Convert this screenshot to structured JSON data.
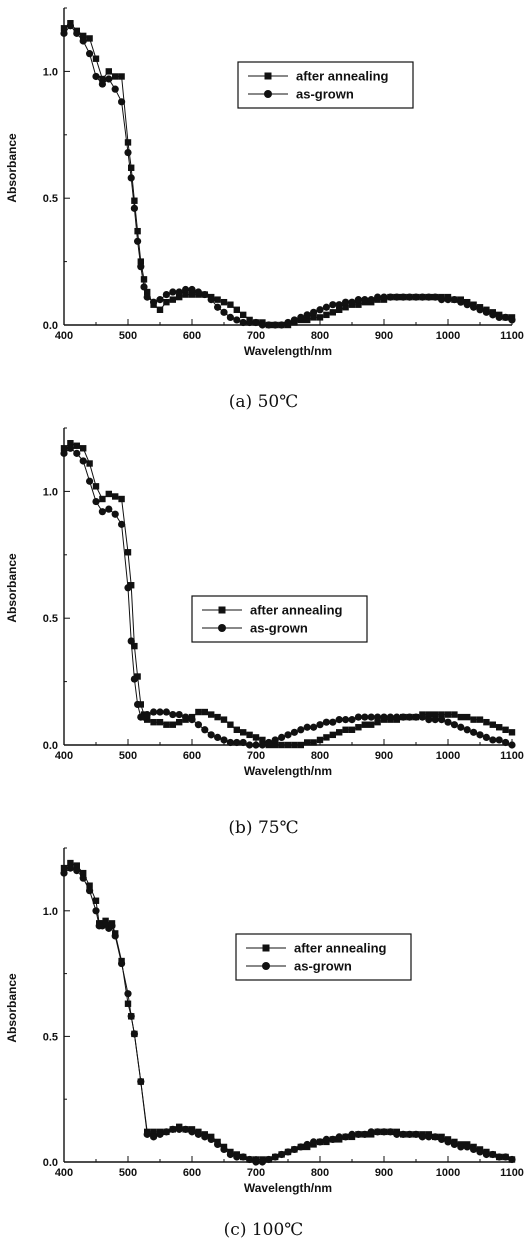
{
  "chart_data": [
    {
      "type": "line",
      "caption": "(a) 50℃",
      "xlabel": "Wavelength/nm",
      "ylabel": "Absorbance",
      "xlim": [
        400,
        1100
      ],
      "ylim": [
        0,
        1.25
      ],
      "xticks": [
        400,
        500,
        600,
        700,
        800,
        900,
        1000,
        1100
      ],
      "yticks": [
        0.0,
        0.5,
        1.0
      ],
      "ytick_labels": [
        "0.0",
        "0.5",
        "1.0"
      ],
      "legend": "upper-right",
      "series": [
        {
          "name": "after annealing",
          "marker": "square",
          "x": [
            400,
            410,
            420,
            430,
            440,
            450,
            460,
            470,
            480,
            490,
            500,
            505,
            510,
            515,
            520,
            525,
            530,
            540,
            550,
            560,
            570,
            580,
            590,
            600,
            610,
            620,
            630,
            640,
            650,
            660,
            670,
            680,
            690,
            700,
            710,
            720,
            730,
            740,
            750,
            760,
            770,
            780,
            790,
            800,
            810,
            820,
            830,
            840,
            850,
            860,
            870,
            880,
            890,
            900,
            910,
            920,
            930,
            940,
            950,
            960,
            970,
            980,
            990,
            1000,
            1010,
            1020,
            1030,
            1040,
            1050,
            1060,
            1070,
            1080,
            1090,
            1100
          ],
          "y": [
            1.17,
            1.19,
            1.16,
            1.14,
            1.13,
            1.05,
            0.97,
            1.0,
            0.98,
            0.98,
            0.72,
            0.62,
            0.49,
            0.37,
            0.25,
            0.18,
            0.13,
            0.08,
            0.06,
            0.09,
            0.1,
            0.11,
            0.12,
            0.12,
            0.12,
            0.12,
            0.11,
            0.1,
            0.09,
            0.08,
            0.06,
            0.04,
            0.02,
            0.01,
            0.01,
            0.0,
            0.0,
            0.0,
            0.0,
            0.01,
            0.02,
            0.02,
            0.03,
            0.03,
            0.04,
            0.05,
            0.06,
            0.07,
            0.08,
            0.08,
            0.09,
            0.09,
            0.1,
            0.1,
            0.11,
            0.11,
            0.11,
            0.11,
            0.11,
            0.11,
            0.11,
            0.11,
            0.11,
            0.11,
            0.1,
            0.1,
            0.09,
            0.08,
            0.07,
            0.06,
            0.05,
            0.04,
            0.03,
            0.03
          ]
        },
        {
          "name": "as-grown",
          "marker": "circle",
          "x": [
            400,
            410,
            420,
            430,
            440,
            450,
            460,
            470,
            480,
            490,
            500,
            505,
            510,
            515,
            520,
            525,
            530,
            540,
            550,
            560,
            570,
            580,
            590,
            600,
            610,
            620,
            630,
            640,
            650,
            660,
            670,
            680,
            690,
            700,
            710,
            720,
            730,
            740,
            750,
            760,
            770,
            780,
            790,
            800,
            810,
            820,
            830,
            840,
            850,
            860,
            870,
            880,
            890,
            900,
            910,
            920,
            930,
            940,
            950,
            960,
            970,
            980,
            990,
            1000,
            1010,
            1020,
            1030,
            1040,
            1050,
            1060,
            1070,
            1080,
            1090,
            1100
          ],
          "y": [
            1.15,
            1.18,
            1.15,
            1.12,
            1.07,
            0.98,
            0.95,
            0.97,
            0.93,
            0.88,
            0.68,
            0.58,
            0.46,
            0.33,
            0.23,
            0.15,
            0.11,
            0.09,
            0.1,
            0.12,
            0.13,
            0.13,
            0.14,
            0.14,
            0.13,
            0.12,
            0.1,
            0.07,
            0.05,
            0.03,
            0.02,
            0.01,
            0.01,
            0.01,
            0.0,
            0.0,
            0.0,
            0.0,
            0.01,
            0.02,
            0.03,
            0.04,
            0.05,
            0.06,
            0.07,
            0.08,
            0.08,
            0.09,
            0.09,
            0.1,
            0.1,
            0.1,
            0.11,
            0.11,
            0.11,
            0.11,
            0.11,
            0.11,
            0.11,
            0.11,
            0.11,
            0.11,
            0.1,
            0.1,
            0.1,
            0.09,
            0.08,
            0.07,
            0.06,
            0.05,
            0.04,
            0.03,
            0.03,
            0.02
          ]
        }
      ]
    },
    {
      "type": "line",
      "caption": "(b) 75℃",
      "xlabel": "Wavelength/nm",
      "ylabel": "Absorbance",
      "xlim": [
        400,
        1100
      ],
      "ylim": [
        0,
        1.25
      ],
      "xticks": [
        400,
        500,
        600,
        700,
        800,
        900,
        1000,
        1100
      ],
      "yticks": [
        0.0,
        0.5,
        1.0
      ],
      "ytick_labels": [
        "0.0",
        "0.5",
        "1.0"
      ],
      "legend": "center",
      "series": [
        {
          "name": "after annealing",
          "marker": "square",
          "x": [
            400,
            410,
            420,
            430,
            440,
            450,
            460,
            470,
            480,
            490,
            500,
            505,
            510,
            515,
            520,
            525,
            530,
            540,
            550,
            560,
            570,
            580,
            590,
            600,
            610,
            620,
            630,
            640,
            650,
            660,
            670,
            680,
            690,
            700,
            710,
            720,
            730,
            740,
            750,
            760,
            770,
            780,
            790,
            800,
            810,
            820,
            830,
            840,
            850,
            860,
            870,
            880,
            890,
            900,
            910,
            920,
            930,
            940,
            950,
            960,
            970,
            980,
            990,
            1000,
            1010,
            1020,
            1030,
            1040,
            1050,
            1060,
            1070,
            1080,
            1090,
            1100
          ],
          "y": [
            1.17,
            1.19,
            1.18,
            1.17,
            1.11,
            1.02,
            0.97,
            0.99,
            0.98,
            0.97,
            0.76,
            0.63,
            0.39,
            0.27,
            0.16,
            0.12,
            0.1,
            0.09,
            0.09,
            0.08,
            0.08,
            0.09,
            0.1,
            0.11,
            0.13,
            0.13,
            0.12,
            0.11,
            0.1,
            0.08,
            0.06,
            0.05,
            0.04,
            0.03,
            0.02,
            0.0,
            0.0,
            0.0,
            0.0,
            0.0,
            0.0,
            0.01,
            0.01,
            0.02,
            0.03,
            0.04,
            0.05,
            0.06,
            0.06,
            0.07,
            0.08,
            0.08,
            0.09,
            0.1,
            0.1,
            0.1,
            0.11,
            0.11,
            0.11,
            0.12,
            0.12,
            0.12,
            0.12,
            0.12,
            0.12,
            0.11,
            0.11,
            0.1,
            0.1,
            0.09,
            0.08,
            0.07,
            0.06,
            0.05
          ]
        },
        {
          "name": "as-grown",
          "marker": "circle",
          "x": [
            400,
            410,
            420,
            430,
            440,
            450,
            460,
            470,
            480,
            490,
            500,
            505,
            510,
            515,
            520,
            525,
            530,
            540,
            550,
            560,
            570,
            580,
            590,
            600,
            610,
            620,
            630,
            640,
            650,
            660,
            670,
            680,
            690,
            700,
            710,
            720,
            730,
            740,
            750,
            760,
            770,
            780,
            790,
            800,
            810,
            820,
            830,
            840,
            850,
            860,
            870,
            880,
            890,
            900,
            910,
            920,
            930,
            940,
            950,
            960,
            970,
            980,
            990,
            1000,
            1010,
            1020,
            1030,
            1040,
            1050,
            1060,
            1070,
            1080,
            1090,
            1100
          ],
          "y": [
            1.15,
            1.17,
            1.15,
            1.12,
            1.04,
            0.96,
            0.92,
            0.93,
            0.91,
            0.87,
            0.62,
            0.41,
            0.26,
            0.16,
            0.11,
            0.11,
            0.12,
            0.13,
            0.13,
            0.13,
            0.12,
            0.12,
            0.11,
            0.1,
            0.08,
            0.06,
            0.04,
            0.03,
            0.02,
            0.01,
            0.01,
            0.01,
            0.0,
            0.0,
            0.0,
            0.01,
            0.02,
            0.03,
            0.04,
            0.05,
            0.06,
            0.07,
            0.07,
            0.08,
            0.09,
            0.09,
            0.1,
            0.1,
            0.1,
            0.11,
            0.11,
            0.11,
            0.11,
            0.11,
            0.11,
            0.11,
            0.11,
            0.11,
            0.11,
            0.11,
            0.1,
            0.1,
            0.1,
            0.09,
            0.08,
            0.07,
            0.06,
            0.05,
            0.04,
            0.03,
            0.02,
            0.02,
            0.01,
            0.0
          ]
        }
      ]
    },
    {
      "type": "line",
      "caption": "(c) 100℃",
      "xlabel": "Wavelength/nm",
      "ylabel": "Absorbance",
      "xlim": [
        400,
        1100
      ],
      "ylim": [
        0,
        1.25
      ],
      "xticks": [
        400,
        500,
        600,
        700,
        800,
        900,
        1000,
        1100
      ],
      "yticks": [
        0.0,
        0.5,
        1.0
      ],
      "ytick_labels": [
        "0.0",
        "0.5",
        "1.0"
      ],
      "legend": "center-right",
      "series": [
        {
          "name": "after annealing",
          "marker": "square",
          "x": [
            400,
            410,
            420,
            430,
            440,
            450,
            455,
            460,
            465,
            470,
            475,
            480,
            490,
            500,
            505,
            510,
            520,
            530,
            540,
            550,
            560,
            570,
            580,
            590,
            600,
            610,
            620,
            630,
            640,
            650,
            660,
            670,
            680,
            690,
            700,
            710,
            720,
            730,
            740,
            750,
            760,
            770,
            780,
            790,
            800,
            810,
            820,
            830,
            840,
            850,
            860,
            870,
            880,
            890,
            900,
            910,
            920,
            930,
            940,
            950,
            960,
            970,
            980,
            990,
            1000,
            1010,
            1020,
            1030,
            1040,
            1050,
            1060,
            1070,
            1080,
            1090,
            1100
          ],
          "y": [
            1.17,
            1.19,
            1.18,
            1.15,
            1.1,
            1.04,
            0.95,
            0.95,
            0.96,
            0.94,
            0.95,
            0.91,
            0.8,
            0.63,
            0.58,
            0.51,
            0.32,
            0.12,
            0.12,
            0.12,
            0.12,
            0.13,
            0.14,
            0.13,
            0.13,
            0.12,
            0.11,
            0.1,
            0.08,
            0.06,
            0.04,
            0.03,
            0.02,
            0.01,
            0.01,
            0.01,
            0.01,
            0.02,
            0.03,
            0.04,
            0.05,
            0.06,
            0.06,
            0.07,
            0.08,
            0.08,
            0.09,
            0.09,
            0.1,
            0.1,
            0.11,
            0.11,
            0.11,
            0.12,
            0.12,
            0.12,
            0.12,
            0.11,
            0.11,
            0.11,
            0.11,
            0.11,
            0.1,
            0.1,
            0.09,
            0.08,
            0.07,
            0.07,
            0.06,
            0.05,
            0.04,
            0.03,
            0.02,
            0.02,
            0.01
          ]
        },
        {
          "name": "as-grown",
          "marker": "circle",
          "x": [
            400,
            410,
            420,
            430,
            440,
            450,
            455,
            460,
            465,
            470,
            475,
            480,
            490,
            500,
            505,
            510,
            520,
            530,
            540,
            550,
            560,
            570,
            580,
            590,
            600,
            610,
            620,
            630,
            640,
            650,
            660,
            670,
            680,
            690,
            700,
            710,
            720,
            730,
            740,
            750,
            760,
            770,
            780,
            790,
            800,
            810,
            820,
            830,
            840,
            850,
            860,
            870,
            880,
            890,
            900,
            910,
            920,
            930,
            940,
            950,
            960,
            970,
            980,
            990,
            1000,
            1010,
            1020,
            1030,
            1040,
            1050,
            1060,
            1070,
            1080,
            1090,
            1100
          ],
          "y": [
            1.15,
            1.17,
            1.16,
            1.13,
            1.08,
            1.0,
            0.94,
            0.94,
            0.95,
            0.93,
            0.94,
            0.9,
            0.79,
            0.67,
            0.58,
            0.51,
            0.32,
            0.11,
            0.1,
            0.11,
            0.12,
            0.13,
            0.13,
            0.13,
            0.12,
            0.11,
            0.1,
            0.09,
            0.07,
            0.05,
            0.03,
            0.02,
            0.02,
            0.01,
            0.0,
            0.0,
            0.01,
            0.02,
            0.03,
            0.04,
            0.05,
            0.06,
            0.07,
            0.08,
            0.08,
            0.09,
            0.09,
            0.1,
            0.1,
            0.11,
            0.11,
            0.11,
            0.12,
            0.12,
            0.12,
            0.12,
            0.11,
            0.11,
            0.11,
            0.11,
            0.1,
            0.1,
            0.1,
            0.09,
            0.08,
            0.07,
            0.06,
            0.06,
            0.05,
            0.04,
            0.03,
            0.03,
            0.02,
            0.02,
            0.01
          ]
        }
      ]
    }
  ]
}
